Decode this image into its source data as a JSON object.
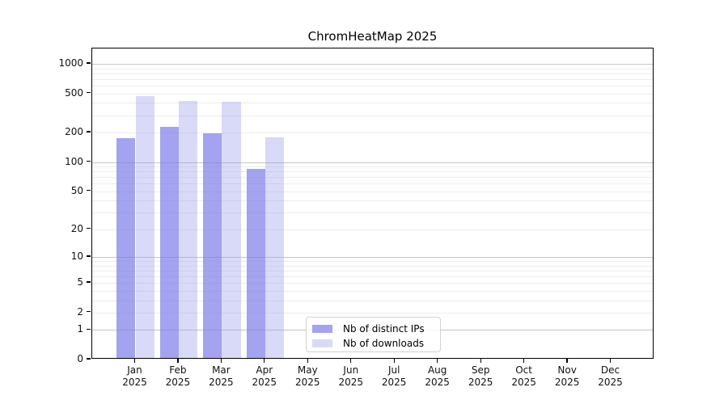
{
  "title": "ChromHeatMap 2025",
  "chart_data": {
    "type": "bar",
    "title": "ChromHeatMap 2025",
    "categories": [
      "Jan 2025",
      "Feb 2025",
      "Mar 2025",
      "Apr 2025",
      "May 2025",
      "Jun 2025",
      "Jul 2025",
      "Aug 2025",
      "Sep 2025",
      "Oct 2025",
      "Nov 2025",
      "Dec 2025"
    ],
    "series": [
      {
        "name": "Nb of distinct IPs",
        "color": "#a3a3ef",
        "fill_rgba": "rgba(124,124,232,0.7)",
        "values": [
          170,
          220,
          188,
          82,
          0,
          0,
          0,
          0,
          0,
          0,
          0,
          0
        ]
      },
      {
        "name": "Nb of downloads",
        "color": "#d9d9f8",
        "fill_rgba": "rgba(146,146,235,0.35)",
        "values": [
          450,
          405,
          398,
          172,
          0,
          0,
          0,
          0,
          0,
          0,
          0,
          0
        ]
      }
    ],
    "xlabel": "",
    "ylabel": "",
    "yscale": "symlog",
    "yticks": [
      0,
      1,
      2,
      5,
      10,
      20,
      50,
      100,
      200,
      500,
      1000
    ],
    "ylim": [
      0,
      1430
    ],
    "grid": "horizontal major+minor",
    "legend_position": "bottom-center",
    "colors": {
      "major_gridline": "#c6c6c6",
      "minor_gridline": "#ededed",
      "spine": "#000000",
      "background": "#ffffff"
    }
  }
}
